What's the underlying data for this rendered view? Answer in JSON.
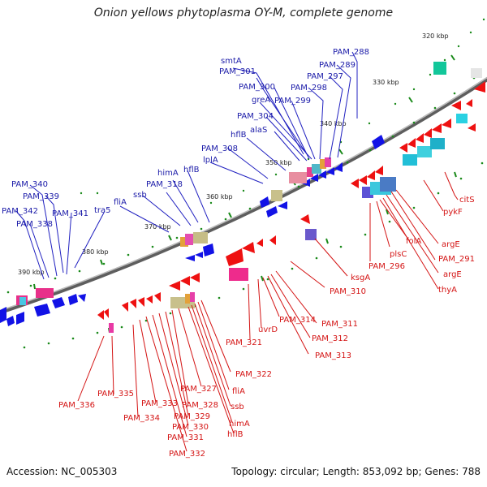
{
  "title": "Onion yellows phytoplasma OY-M, complete genome",
  "footer": {
    "accession": "Accession: NC_005303",
    "summary": "Topology: circular; Length: 853,092 bp; Genes: 788"
  },
  "kbp_labels": [
    "320 kbp",
    "330 kbp",
    "340 kbp",
    "350 kbp",
    "360 kbp",
    "370 kbp",
    "380 kbp",
    "390 kbp"
  ],
  "blue_labels": [
    "smtA",
    "PAM_301",
    "PAM_300",
    "greA",
    "PAM_304",
    "alaS",
    "hflB",
    "PAM_308",
    "lplA",
    "hflB",
    "himA",
    "PAM_318",
    "ssb",
    "fliA",
    "tra5",
    "PAM_340",
    "PAM_339",
    "PAM_342",
    "PAM_341",
    "PAM_338",
    "PAM_288",
    "PAM_289",
    "PAM_297",
    "PAM_298",
    "PAM_299"
  ],
  "red_labels": [
    "citS",
    "pykF",
    "argE",
    "PAM_291",
    "argE",
    "thyA",
    "folA",
    "plsC",
    "PAM_296",
    "ksgA",
    "PAM_310",
    "PAM_311",
    "PAM_312",
    "PAM_313",
    "PAM_314",
    "uvrD",
    "PAM_321",
    "PAM_322",
    "fliA",
    "ssb",
    "himA",
    "hflB",
    "PAM_327",
    "PAM_328",
    "PAM_329",
    "PAM_330",
    "PAM_331",
    "PAM_332",
    "PAM_333",
    "PAM_334",
    "PAM_335",
    "PAM_336"
  ],
  "colors": {
    "backbone": "#6a6a6a",
    "tick": "#1a8a1a",
    "forward_gene": "#1010e0",
    "reverse_gene": "#ee1111",
    "blue_label": "#1a1aa8",
    "red_label": "#d41414"
  }
}
